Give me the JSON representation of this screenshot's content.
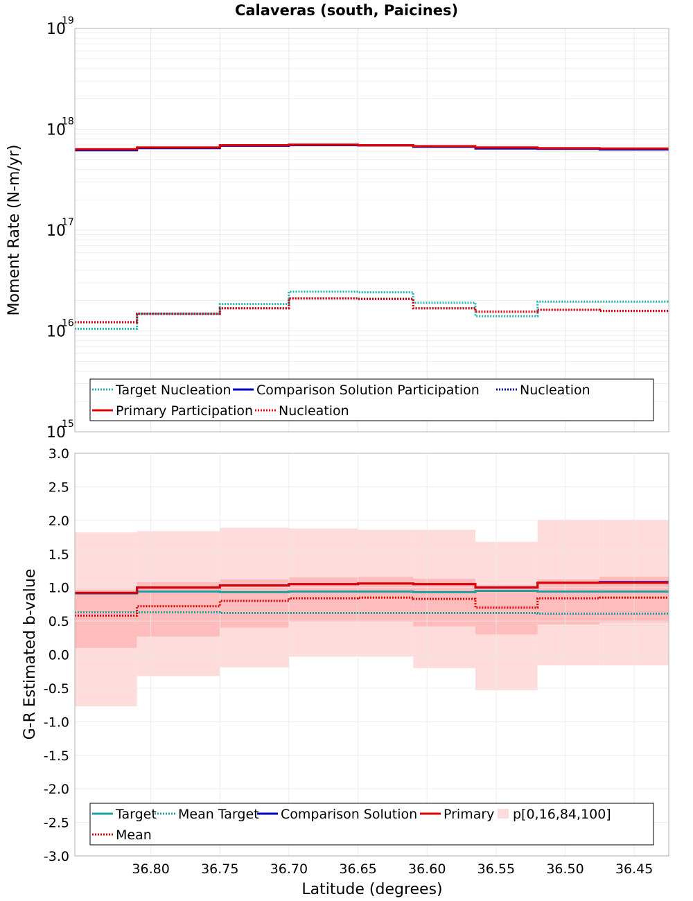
{
  "chart_data": [
    {
      "type": "line",
      "title": "Calaveras (south, Paicines)",
      "xlabel": "",
      "ylabel": "Moment Rate (N-m/yr)",
      "yscale": "log",
      "ylim": [
        1000000000000000.0,
        1e+19
      ],
      "xlim": [
        36.855,
        36.425
      ],
      "x_reversed": true,
      "ytick_bases": [
        "10",
        "10",
        "10",
        "10",
        "10"
      ],
      "ytick_exps": [
        "15",
        "16",
        "17",
        "18",
        "19"
      ],
      "ytick_values": [
        1000000000000000.0,
        1e+16,
        1e+17,
        1e+18,
        1e+19
      ],
      "grid": true,
      "legend_position": "bottom",
      "bins": [
        [
          36.855,
          36.81
        ],
        [
          36.81,
          36.75
        ],
        [
          36.75,
          36.7
        ],
        [
          36.7,
          36.65
        ],
        [
          36.65,
          36.61
        ],
        [
          36.61,
          36.565
        ],
        [
          36.565,
          36.52
        ],
        [
          36.52,
          36.475
        ],
        [
          36.475,
          36.425
        ]
      ],
      "series": [
        {
          "name": "Target Nucleation",
          "style": "dotted",
          "color": "#1fb0b0",
          "values": [
            1.05e+16,
            1.48e+16,
            1.85e+16,
            2.45e+16,
            2.42e+16,
            1.9e+16,
            1.4e+16,
            1.95e+16,
            1.95e+16
          ]
        },
        {
          "name": "Comparison Solution Participation",
          "style": "solid",
          "color": "#0000b8",
          "values": [
            6.2e+17,
            6.5e+17,
            6.85e+17,
            6.95e+17,
            6.9e+17,
            6.7e+17,
            6.45e+17,
            6.4e+17,
            6.3e+17
          ]
        },
        {
          "name": "Nucleation",
          "style": "dotted",
          "color": "#00008b",
          "values": [
            1.22e+16,
            1.48e+16,
            1.68e+16,
            2.1e+16,
            2.08e+16,
            1.68e+16,
            1.55e+16,
            1.62e+16,
            1.58e+16
          ]
        },
        {
          "name": "Primary Participation",
          "style": "solid",
          "color": "#e00000",
          "values": [
            6.35e+17,
            6.6e+17,
            6.95e+17,
            7.05e+17,
            6.95e+17,
            6.8e+17,
            6.6e+17,
            6.5e+17,
            6.45e+17
          ]
        },
        {
          "name": "Nucleation",
          "style": "dotted",
          "color": "#e00000",
          "values": [
            1.22e+16,
            1.48e+16,
            1.68e+16,
            2.1e+16,
            2.08e+16,
            1.68e+16,
            1.55e+16,
            1.62e+16,
            1.58e+16
          ]
        }
      ]
    },
    {
      "type": "line",
      "title": "",
      "xlabel": "Latitude (degrees)",
      "ylabel": "G-R Estimated b-value",
      "ylim": [
        -3.0,
        3.0
      ],
      "xlim": [
        36.855,
        36.425
      ],
      "x_reversed": true,
      "yticks": [
        "-3.0",
        "-2.5",
        "-2.0",
        "-1.5",
        "-1.0",
        "-0.5",
        "0.0",
        "0.5",
        "1.0",
        "1.5",
        "2.0",
        "2.5",
        "3.0"
      ],
      "ytick_values": [
        -3.0,
        -2.5,
        -2.0,
        -1.5,
        -1.0,
        -0.5,
        0.0,
        0.5,
        1.0,
        1.5,
        2.0,
        2.5,
        3.0
      ],
      "xticks": [
        "36.80",
        "36.75",
        "36.70",
        "36.65",
        "36.60",
        "36.55",
        "36.50",
        "36.45"
      ],
      "xtick_values": [
        36.8,
        36.75,
        36.7,
        36.65,
        36.6,
        36.55,
        36.5,
        36.45
      ],
      "grid": true,
      "legend_position": "bottom",
      "bins": [
        [
          36.855,
          36.81
        ],
        [
          36.81,
          36.75
        ],
        [
          36.75,
          36.7
        ],
        [
          36.7,
          36.65
        ],
        [
          36.65,
          36.61
        ],
        [
          36.61,
          36.565
        ],
        [
          36.565,
          36.52
        ],
        [
          36.52,
          36.475
        ],
        [
          36.475,
          36.425
        ]
      ],
      "band_outer": {
        "low": [
          -0.77,
          -0.32,
          -0.19,
          -0.03,
          -0.03,
          -0.2,
          -0.53,
          -0.16,
          -0.16
        ],
        "high": [
          1.82,
          1.84,
          1.89,
          1.88,
          1.86,
          1.86,
          1.68,
          2.01,
          2.01
        ]
      },
      "band_inner": {
        "low": [
          0.1,
          0.27,
          0.4,
          0.49,
          0.49,
          0.42,
          0.3,
          0.45,
          0.48
        ],
        "high": [
          0.97,
          1.08,
          1.12,
          1.15,
          1.16,
          1.13,
          1.04,
          1.12,
          1.16
        ]
      },
      "series": [
        {
          "name": "Target",
          "style": "solid",
          "color": "#1fa0a0",
          "values": [
            0.91,
            0.94,
            0.93,
            0.94,
            0.94,
            0.93,
            0.95,
            0.94,
            0.94
          ]
        },
        {
          "name": "Mean Target",
          "style": "dotted",
          "color": "#1fa0a0",
          "values": [
            0.63,
            0.63,
            0.62,
            0.62,
            0.62,
            0.62,
            0.62,
            0.61,
            0.61
          ]
        },
        {
          "name": "Comparison Solution",
          "style": "solid",
          "color": "#0000b8",
          "values": [
            0.92,
            1.0,
            1.03,
            1.05,
            1.06,
            1.05,
            1.0,
            1.07,
            1.08
          ]
        },
        {
          "name": "Primary",
          "style": "solid",
          "color": "#e00000",
          "values": [
            0.92,
            1.0,
            1.03,
            1.05,
            1.06,
            1.05,
            1.0,
            1.07,
            1.07
          ]
        },
        {
          "name": "Mean",
          "style": "dotted",
          "color": "#e00000",
          "values": [
            0.58,
            0.72,
            0.8,
            0.84,
            0.85,
            0.83,
            0.7,
            0.84,
            0.85
          ]
        }
      ],
      "legend_band_label": "p[0,16,84,100]"
    }
  ],
  "colors": {
    "band_outer": "#ffdcdc",
    "band_inner": "#ffbcbc",
    "grid": "#e8e8e8",
    "frame": "#b0b0b0"
  }
}
